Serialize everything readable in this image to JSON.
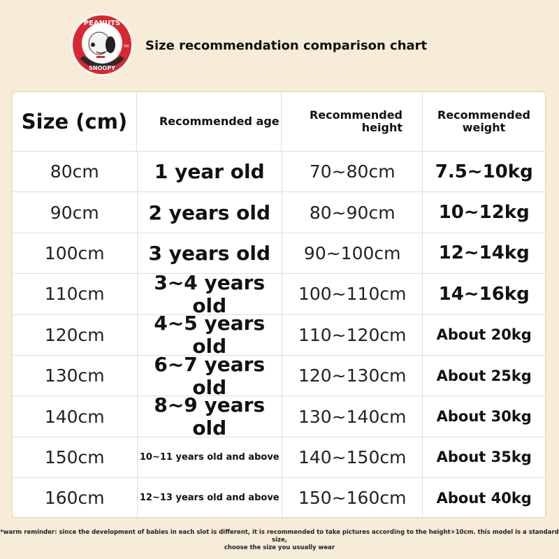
{
  "logo": {
    "brand_text": "PEANUTS",
    "sub_text": "SNOOPY",
    "trademark": "TM",
    "colors": {
      "red": "#d8282f",
      "dark": "#2a2a2a"
    }
  },
  "title": "Size recommendation comparison chart",
  "table": {
    "headers": [
      "Size (cm)",
      "Recommended age",
      "Recommended height",
      "Recommended weight"
    ],
    "rows": [
      {
        "size": "80cm",
        "age": "1 year old",
        "height": "70~80cm",
        "weight": "7.5~10kg"
      },
      {
        "size": "90cm",
        "age": "2 years old",
        "height": "80~90cm",
        "weight": "10~12kg"
      },
      {
        "size": "100cm",
        "age": "3 years old",
        "height": "90~100cm",
        "weight": "12~14kg"
      },
      {
        "size": "110cm",
        "age": "3~4 years old",
        "height": "100~110cm",
        "weight": "14~16kg"
      },
      {
        "size": "120cm",
        "age": "4~5 years old",
        "height": "110~120cm",
        "weight": "About 20kg"
      },
      {
        "size": "130cm",
        "age": "6~7 years old",
        "height": "120~130cm",
        "weight": "About 25kg"
      },
      {
        "size": "140cm",
        "age": "8~9 years old",
        "height": "130~140cm",
        "weight": "About 30kg"
      },
      {
        "size": "150cm",
        "age": "10~11 years old and above",
        "height": "140~150cm",
        "weight": "About 35kg"
      },
      {
        "size": "160cm",
        "age": "12~13 years old and above",
        "height": "150~160cm",
        "weight": "About 40kg"
      }
    ]
  },
  "footer": {
    "line1": "*warm reminder: since the development of babies in each slot is different, it is recommended to take pictures according to the height+10cm. this model is a standard size,",
    "line2": "choose the size you usually wear"
  }
}
